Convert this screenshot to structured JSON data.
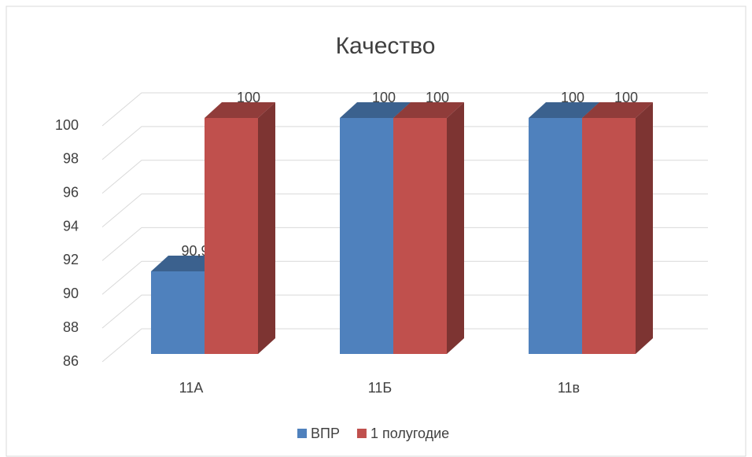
{
  "chart_data": {
    "type": "bar3d",
    "title": "Качество",
    "categories": [
      "11А",
      "11Б",
      "11в"
    ],
    "series": [
      {
        "name": "ВПР",
        "color": "#4f81bd",
        "values": [
          90.9,
          100,
          100
        ],
        "value_labels": [
          "90,9",
          "100",
          "100"
        ]
      },
      {
        "name": "1 полугодие",
        "color": "#c0504d",
        "values": [
          100,
          100,
          100
        ],
        "value_labels": [
          "100",
          "100",
          "100"
        ]
      }
    ],
    "ylim": [
      86,
      100
    ],
    "yticks": [
      86,
      88,
      90,
      92,
      94,
      96,
      98,
      100
    ],
    "grid": true,
    "legend": "bottom"
  }
}
